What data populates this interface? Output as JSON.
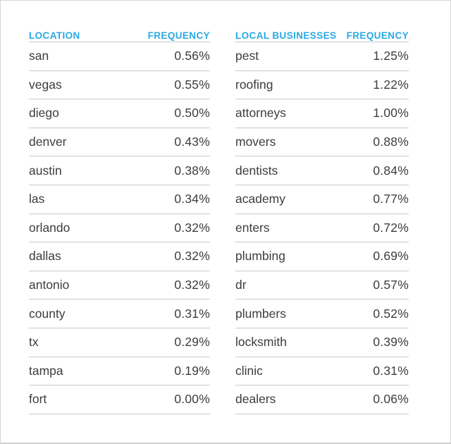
{
  "accent_color": "#29a9e2",
  "text_color": "#3d3d3d",
  "divider_color": "#c9c9c9",
  "page_border_color": "#d6d6d6",
  "chart_data": [
    {
      "type": "table",
      "title": "LOCATION",
      "columns": [
        "LOCATION",
        "FREQUENCY"
      ],
      "unit": "%",
      "categories": [
        "san",
        "vegas",
        "diego",
        "denver",
        "austin",
        "las",
        "orlando",
        "dallas",
        "antonio",
        "county",
        "tx",
        "tampa",
        "fort"
      ],
      "values": [
        0.56,
        0.55,
        0.5,
        0.43,
        0.38,
        0.34,
        0.32,
        0.32,
        0.32,
        0.31,
        0.29,
        0.19,
        0.0
      ],
      "rows": [
        [
          "san",
          "0.56%"
        ],
        [
          "vegas",
          "0.55%"
        ],
        [
          "diego",
          "0.50%"
        ],
        [
          "denver",
          "0.43%"
        ],
        [
          "austin",
          "0.38%"
        ],
        [
          "las",
          "0.34%"
        ],
        [
          "orlando",
          "0.32%"
        ],
        [
          "dallas",
          "0.32%"
        ],
        [
          "antonio",
          "0.32%"
        ],
        [
          "county",
          "0.31%"
        ],
        [
          "tx",
          "0.29%"
        ],
        [
          "tampa",
          "0.19%"
        ],
        [
          "fort",
          "0.00%"
        ]
      ]
    },
    {
      "type": "table",
      "title": "LOCAL BUSINESSES",
      "columns": [
        "LOCAL BUSINESSES",
        "FREQUENCY"
      ],
      "unit": "%",
      "categories": [
        "pest",
        "roofing",
        "attorneys",
        "movers",
        "dentists",
        "academy",
        "enters",
        "plumbing",
        "dr",
        "plumbers",
        "locksmith",
        "clinic",
        "dealers"
      ],
      "values": [
        1.25,
        1.22,
        1.0,
        0.88,
        0.84,
        0.77,
        0.72,
        0.69,
        0.57,
        0.52,
        0.39,
        0.31,
        0.06
      ],
      "rows": [
        [
          "pest",
          "1.25%"
        ],
        [
          "roofing",
          "1.22%"
        ],
        [
          "attorneys",
          "1.00%"
        ],
        [
          "movers",
          "0.88%"
        ],
        [
          "dentists",
          "0.84%"
        ],
        [
          "academy",
          "0.77%"
        ],
        [
          "enters",
          "0.72%"
        ],
        [
          "plumbing",
          "0.69%"
        ],
        [
          "dr",
          "0.57%"
        ],
        [
          "plumbers",
          "0.52%"
        ],
        [
          "locksmith",
          "0.39%"
        ],
        [
          "clinic",
          "0.31%"
        ],
        [
          "dealers",
          "0.06%"
        ]
      ]
    }
  ]
}
